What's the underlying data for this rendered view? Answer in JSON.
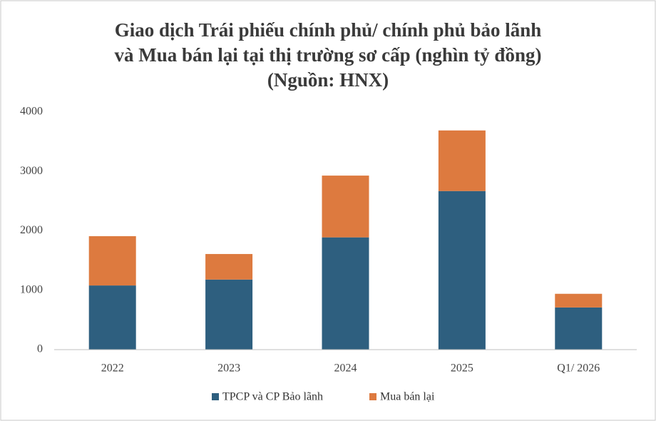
{
  "chart_data": {
    "type": "stacked_bar",
    "title": [
      "Giao dịch Trái phiếu chính phủ/ chính phủ bảo lãnh",
      "và Mua bán lại tại thị trường sơ cấp (nghìn tỷ đồng)",
      "(Nguồn: HNX)"
    ],
    "categories": [
      "2022",
      "2023",
      "2024",
      "2025",
      "Q1/ 2026"
    ],
    "series": [
      {
        "name": "TPCP và CP Bảo lãnh",
        "color": "#2e5f7f",
        "values": [
          1080,
          1180,
          1890,
          2670,
          710
        ]
      },
      {
        "name": "Mua bán lại",
        "color": "#dd7a3f",
        "values": [
          830,
          430,
          1040,
          1020,
          230
        ]
      }
    ],
    "ylim": [
      0,
      4000
    ],
    "yticks": [
      0,
      1000,
      2000,
      3000,
      4000
    ],
    "grid": false,
    "legend": "bottom"
  }
}
